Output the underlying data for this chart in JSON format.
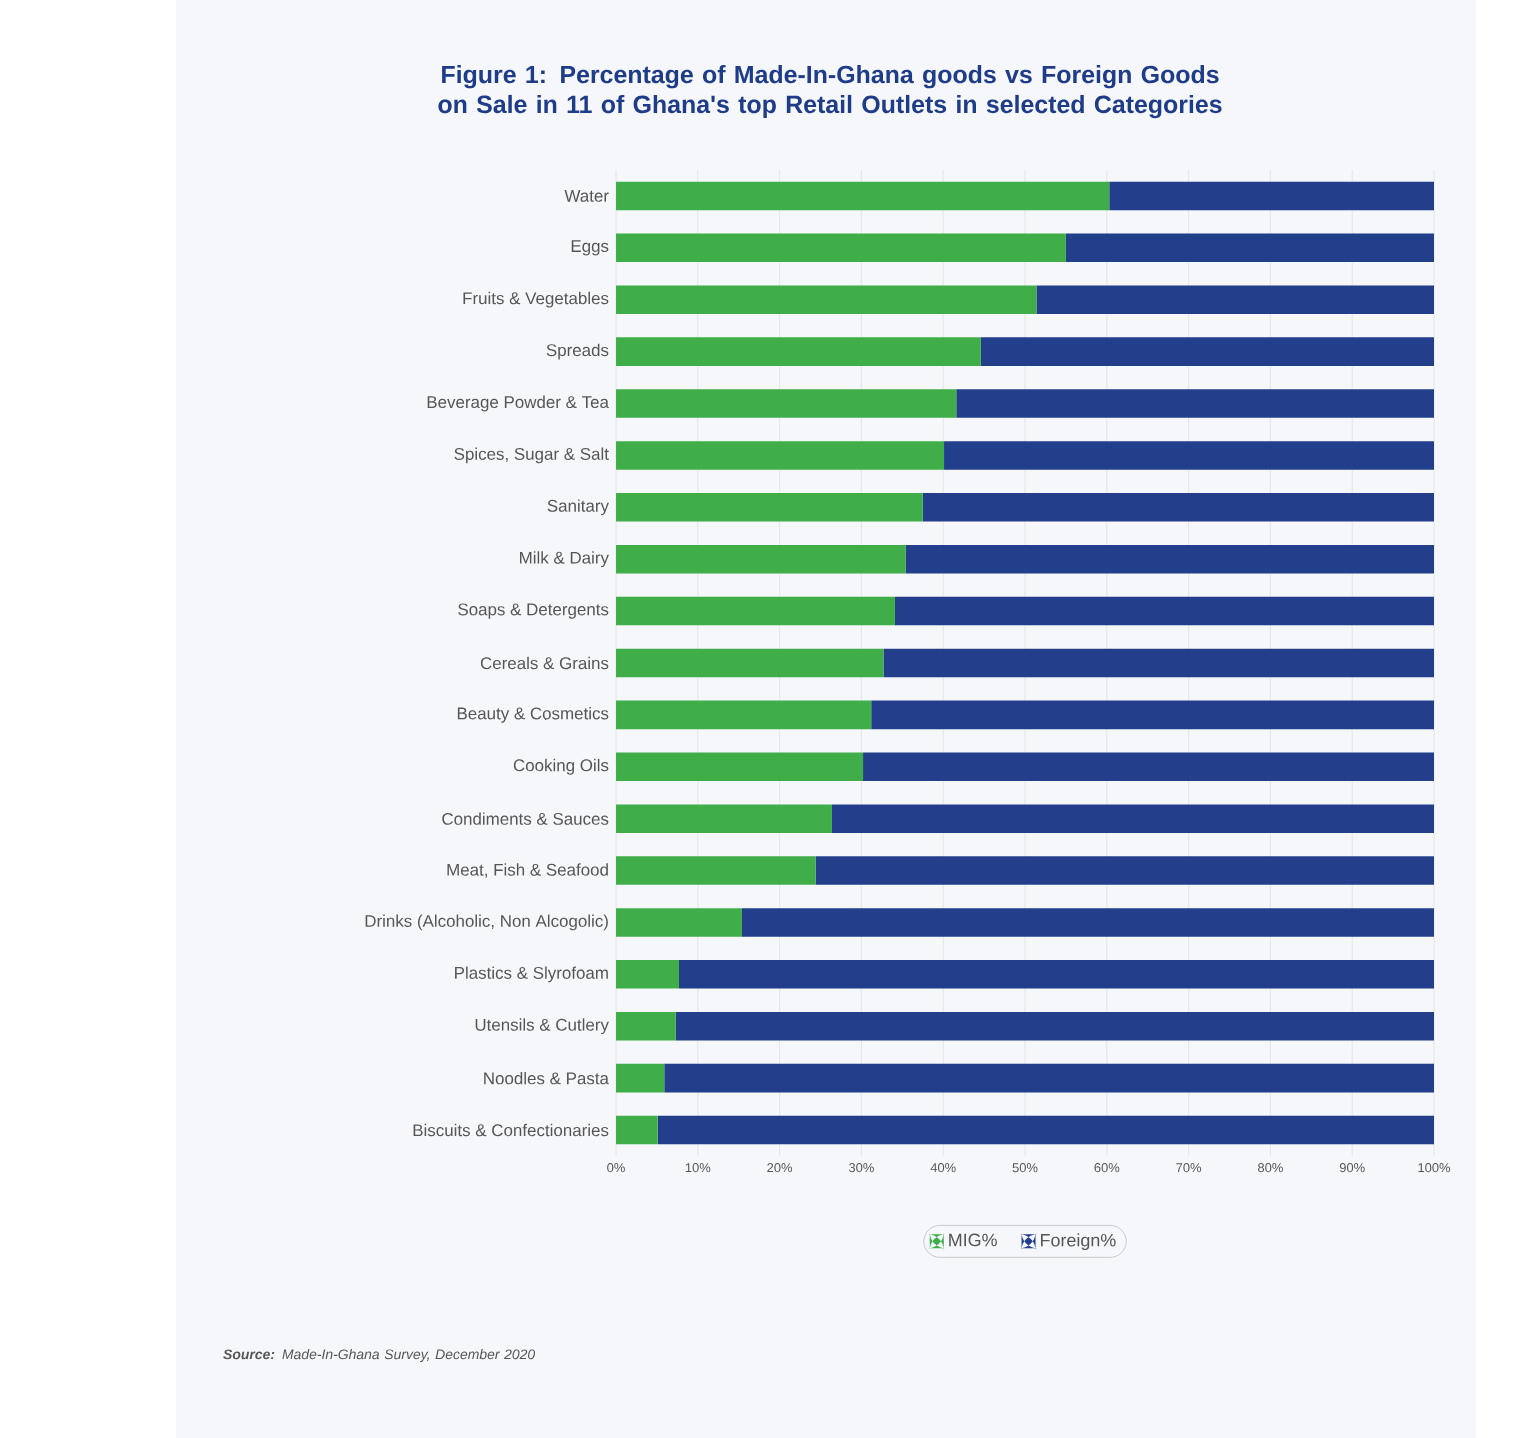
{
  "chart_data": {
    "type": "bar",
    "orientation": "horizontal",
    "stacked": true,
    "title": "Figure 1: Percentage of Made-In-Ghana goods vs Foreign Goods on Sale in 11 of Ghana's top Retail Outlets in selected Categories",
    "categories": [
      "Water",
      "Eggs",
      "Fruits & Vegetables",
      "Spreads",
      "Beverage Powder & Tea",
      "Spices, Sugar & Salt",
      "Sanitary",
      "Milk & Dairy",
      "Soaps & Detergents",
      "Cereals & Grains",
      "Beauty & Cosmetics",
      "Cooking Oils",
      "Condiments & Sauces",
      "Meat, Fish & Seafood",
      "Drinks (Alcoholic, Non Alcogolic)",
      "Plastics & Slyrofoam",
      "Utensils & Cutlery",
      "Noodles & Pasta",
      "Biscuits & Confectionaries"
    ],
    "series": [
      {
        "name": "MIG%",
        "color": "#3fae49",
        "values": [
          60.3,
          55.0,
          51.4,
          44.6,
          41.6,
          40.1,
          37.5,
          35.4,
          34.1,
          32.7,
          31.2,
          30.2,
          26.4,
          24.4,
          15.4,
          7.7,
          7.3,
          5.9,
          5.1
        ]
      },
      {
        "name": "Foreign%",
        "color": "#233e8b",
        "values": [
          39.7,
          45.0,
          48.6,
          55.4,
          58.4,
          59.9,
          62.5,
          64.6,
          65.9,
          67.3,
          68.8,
          69.8,
          73.6,
          75.6,
          84.6,
          92.3,
          92.7,
          94.1,
          94.9
        ]
      }
    ],
    "xlim": [
      0,
      100
    ],
    "xticks": [
      {
        "value": 0,
        "label": "0%"
      },
      {
        "value": 10,
        "label": "10%"
      },
      {
        "value": 20,
        "label": "20%"
      },
      {
        "value": 30,
        "label": "30%"
      },
      {
        "value": 40,
        "label": "40%"
      },
      {
        "value": 50,
        "label": "50%"
      },
      {
        "value": 60,
        "label": "60%"
      },
      {
        "value": 70,
        "label": "70%"
      },
      {
        "value": 80,
        "label": "80%"
      },
      {
        "value": 90,
        "label": "90%"
      },
      {
        "value": 100,
        "label": "100%"
      }
    ],
    "grid": "x",
    "legend": "bottom",
    "annotations": [
      "**Source:** Made-In-Ghana Survey, December 2020"
    ]
  }
}
